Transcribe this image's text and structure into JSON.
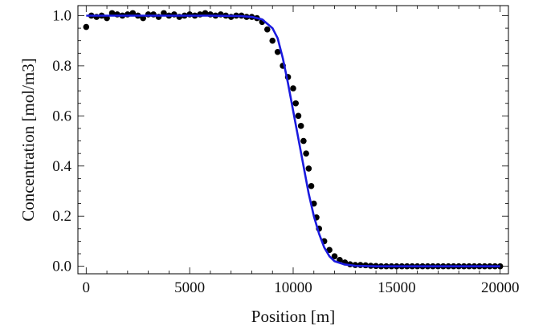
{
  "chart_data": {
    "type": "scatter",
    "xlabel": "Position [m]",
    "ylabel": "Concentration [mol/m3]",
    "xlim": [
      -400,
      20400
    ],
    "ylim": [
      -0.03,
      1.04
    ],
    "xticks": [
      0,
      5000,
      10000,
      15000,
      20000
    ],
    "xtick_labels": [
      "0",
      "5000",
      "10000",
      "15000",
      "20000"
    ],
    "yticks": [
      0.0,
      0.2,
      0.4,
      0.6,
      0.8,
      1.0
    ],
    "ytick_labels": [
      "0.0",
      "0.2",
      "0.4",
      "0.6",
      "0.8",
      "1.0"
    ],
    "grid": false,
    "series": [
      {
        "kind": "points",
        "color": "#000000",
        "x": [
          0,
          250,
          500,
          750,
          1000,
          1250,
          1500,
          1750,
          2000,
          2250,
          2500,
          2750,
          3000,
          3250,
          3500,
          3750,
          4000,
          4250,
          4500,
          4750,
          5000,
          5250,
          5500,
          5750,
          6000,
          6250,
          6500,
          6750,
          7000,
          7250,
          7500,
          7750,
          8000,
          8250,
          8500,
          8750,
          9000,
          9250,
          9500,
          9750,
          10000,
          10125,
          10250,
          10375,
          10500,
          10625,
          10750,
          10875,
          11000,
          11125,
          11250,
          11500,
          11750,
          12000,
          12250,
          12500,
          12750,
          13000,
          13250,
          13500,
          13750,
          14000,
          14250,
          14500,
          14750,
          15000,
          15250,
          15500,
          15750,
          16000,
          16250,
          16500,
          16750,
          17000,
          17250,
          17500,
          17750,
          18000,
          18250,
          18500,
          18750,
          19000,
          19250,
          19500,
          19750,
          20000
        ],
        "y": [
          0.955,
          1.0,
          0.995,
          1.0,
          0.99,
          1.01,
          1.005,
          1.0,
          1.005,
          1.01,
          1.0,
          0.99,
          1.005,
          1.005,
          0.995,
          1.01,
          1.0,
          1.005,
          0.995,
          1.0,
          1.005,
          1.0,
          1.005,
          1.01,
          1.005,
          1.0,
          1.005,
          1.0,
          0.995,
          1.0,
          1.0,
          0.995,
          0.995,
          0.99,
          0.975,
          0.945,
          0.9,
          0.855,
          0.8,
          0.755,
          0.71,
          0.65,
          0.6,
          0.56,
          0.5,
          0.45,
          0.39,
          0.32,
          0.25,
          0.195,
          0.15,
          0.1,
          0.065,
          0.04,
          0.025,
          0.015,
          0.008,
          0.005,
          0.005,
          0.004,
          0.002,
          0.001,
          0.0,
          0.0,
          0.0,
          0.0,
          0.0,
          0.0,
          0.0,
          0.0,
          0.0,
          0.0,
          0.0,
          0.0,
          0.0,
          0.0,
          0.0,
          0.0,
          0.0,
          0.0,
          0.0,
          0.0,
          0.0,
          0.0,
          0.0,
          0.0
        ]
      },
      {
        "kind": "line",
        "color": "#1a1adf",
        "x": [
          0,
          1000,
          2000,
          3000,
          4000,
          5000,
          6000,
          7000,
          7500,
          8000,
          8500,
          9000,
          9250,
          9500,
          9750,
          10000,
          10250,
          10500,
          10750,
          11000,
          11250,
          11500,
          11750,
          12000,
          12500,
          13000,
          14000,
          15000,
          16000,
          17000,
          18000,
          19000,
          20000
        ],
        "y": [
          1.0,
          1.0,
          1.0,
          1.0,
          1.0,
          1.0,
          1.0,
          0.999,
          0.998,
          0.995,
          0.985,
          0.95,
          0.91,
          0.83,
          0.73,
          0.62,
          0.51,
          0.4,
          0.29,
          0.2,
          0.13,
          0.075,
          0.04,
          0.02,
          0.007,
          0.002,
          0.0,
          0.0,
          0.0,
          0.0,
          0.0,
          0.0,
          0.0
        ]
      }
    ]
  }
}
